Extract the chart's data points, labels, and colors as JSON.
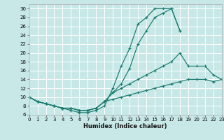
{
  "xlabel": "Humidex (Indice chaleur)",
  "bg_color": "#c8e8e8",
  "grid_color": "#ffffff",
  "line_color": "#1a7a6e",
  "xlim": [
    0,
    23
  ],
  "ylim": [
    6,
    31
  ],
  "xticks": [
    0,
    1,
    2,
    3,
    4,
    5,
    6,
    7,
    8,
    9,
    10,
    11,
    12,
    13,
    14,
    15,
    16,
    17,
    18,
    19,
    20,
    21,
    22,
    23
  ],
  "yticks": [
    6,
    8,
    10,
    12,
    14,
    16,
    18,
    20,
    22,
    24,
    26,
    28,
    30
  ],
  "series": [
    {
      "x": [
        0,
        1,
        2,
        3,
        4,
        5,
        6,
        7,
        8,
        9,
        10,
        11,
        12,
        13,
        14,
        15,
        16,
        17,
        18
      ],
      "y": [
        10,
        9,
        8.5,
        8,
        7.5,
        7,
        6.5,
        6.5,
        7,
        8,
        12,
        17,
        21,
        26.5,
        28,
        30,
        30,
        30,
        25
      ]
    },
    {
      "x": [
        0,
        1,
        2,
        3,
        4,
        5,
        6,
        7,
        8,
        9,
        10,
        11,
        12,
        13,
        14,
        15,
        16,
        17,
        18
      ],
      "y": [
        10,
        9,
        8.5,
        8,
        7.5,
        7.5,
        7,
        7,
        7.5,
        9,
        11,
        13,
        16.5,
        22,
        25,
        28,
        29,
        30,
        25
      ]
    },
    {
      "x": [
        0,
        1,
        2,
        3,
        4,
        5,
        6,
        7,
        8,
        9,
        10,
        11,
        12,
        13,
        14,
        15,
        16,
        17,
        18,
        19,
        20,
        21,
        22,
        23
      ],
      "y": [
        10,
        9,
        8.5,
        8,
        7.5,
        7.5,
        7,
        7,
        7.5,
        9,
        11,
        12,
        13,
        14,
        15,
        16,
        17,
        18,
        20,
        17,
        17,
        17,
        15,
        14
      ]
    },
    {
      "x": [
        0,
        1,
        2,
        3,
        4,
        5,
        6,
        7,
        8,
        9,
        10,
        11,
        12,
        13,
        14,
        15,
        16,
        17,
        18,
        19,
        20,
        21,
        22,
        23
      ],
      "y": [
        10,
        9,
        8.5,
        8,
        7.5,
        7.5,
        7,
        7,
        7.5,
        9,
        9.5,
        10,
        10.5,
        11,
        11.5,
        12,
        12.5,
        13,
        13.5,
        14,
        14,
        14,
        13.5,
        14
      ]
    }
  ]
}
